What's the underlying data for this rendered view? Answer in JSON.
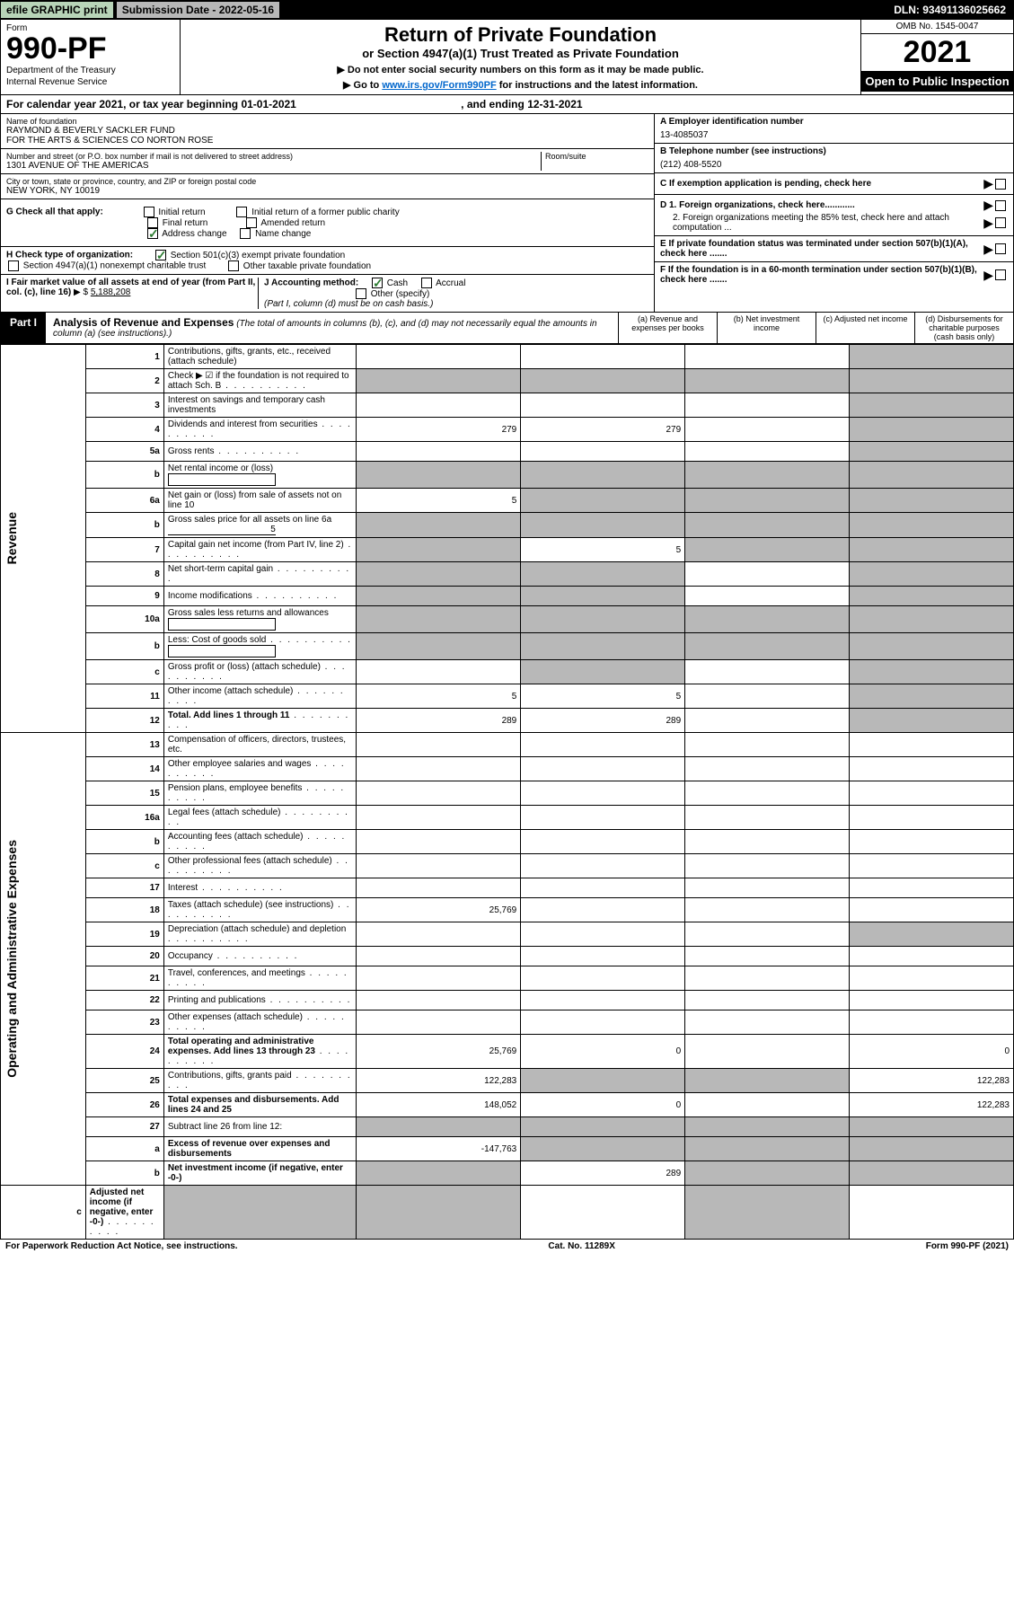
{
  "topbar": {
    "efile": "efile GRAPHIC print",
    "submission": "Submission Date - 2022-05-16",
    "dln": "DLN: 93491136025662"
  },
  "header": {
    "form_word": "Form",
    "form_number": "990-PF",
    "dept": "Department of the Treasury",
    "irs": "Internal Revenue Service",
    "title": "Return of Private Foundation",
    "subtitle": "or Section 4947(a)(1) Trust Treated as Private Foundation",
    "instr1": "▶ Do not enter social security numbers on this form as it may be made public.",
    "instr2_pre": "▶ Go to ",
    "instr2_link": "www.irs.gov/Form990PF",
    "instr2_post": " for instructions and the latest information.",
    "omb": "OMB No. 1545-0047",
    "year": "2021",
    "open": "Open to Public Inspection"
  },
  "calendar": {
    "text_pre": "For calendar year 2021, or tax year beginning ",
    "begin": "01-01-2021",
    "mid": " , and ending ",
    "end": "12-31-2021"
  },
  "foundation": {
    "name_label": "Name of foundation",
    "name1": "RAYMOND & BEVERLY SACKLER FUND",
    "name2": "FOR THE ARTS & SCIENCES CO NORTON ROSE",
    "addr_label": "Number and street (or P.O. box number if mail is not delivered to street address)",
    "addr": "1301 AVENUE OF THE AMERICAS",
    "room_label": "Room/suite",
    "city_label": "City or town, state or province, country, and ZIP or foreign postal code",
    "city": "NEW YORK, NY  10019",
    "ein_label": "A Employer identification number",
    "ein": "13-4085037",
    "phone_label": "B Telephone number (see instructions)",
    "phone": "(212) 408-5520",
    "c_label": "C If exemption application is pending, check here",
    "d1": "D 1. Foreign organizations, check here............",
    "d2": "2. Foreign organizations meeting the 85% test, check here and attach computation ...",
    "e_label": "E  If private foundation status was terminated under section 507(b)(1)(A), check here .......",
    "f_label": "F  If the foundation is in a 60-month termination under section 507(b)(1)(B), check here .......",
    "g_label": "G Check all that apply:",
    "g_opts": {
      "initial": "Initial return",
      "initial_former": "Initial return of a former public charity",
      "final": "Final return",
      "amended": "Amended return",
      "address": "Address change",
      "name": "Name change"
    },
    "h_label": "H Check type of organization:",
    "h_501": "Section 501(c)(3) exempt private foundation",
    "h_4947": "Section 4947(a)(1) nonexempt charitable trust",
    "h_other": "Other taxable private foundation",
    "i_label": "I Fair market value of all assets at end of year (from Part II, col. (c), line 16)",
    "i_val": "5,188,208",
    "j_label": "J Accounting method:",
    "j_cash": "Cash",
    "j_accrual": "Accrual",
    "j_other": "Other (specify)",
    "j_note": "(Part I, column (d) must be on cash basis.)"
  },
  "part1": {
    "label": "Part I",
    "title": "Analysis of Revenue and Expenses",
    "note": " (The total of amounts in columns (b), (c), and (d) may not necessarily equal the amounts in column (a) (see instructions).)",
    "col_a": "(a)  Revenue and expenses per books",
    "col_b": "(b)  Net investment income",
    "col_c": "(c)  Adjusted net income",
    "col_d": "(d)  Disbursements for charitable purposes (cash basis only)"
  },
  "vert": {
    "revenue": "Revenue",
    "expenses": "Operating and Administrative Expenses"
  },
  "rows": [
    {
      "n": "1",
      "desc": "Contributions, gifts, grants, etc., received (attach schedule)",
      "a": "",
      "b": "",
      "c": "",
      "d": "",
      "d_shade": true
    },
    {
      "n": "2",
      "desc": "Check ▶ ☑ if the foundation is not required to attach Sch. B",
      "dots": true,
      "a": "",
      "b": "",
      "c": "",
      "d": "",
      "all_shade": true
    },
    {
      "n": "3",
      "desc": "Interest on savings and temporary cash investments",
      "a": "",
      "b": "",
      "c": "",
      "d": "",
      "d_shade": true
    },
    {
      "n": "4",
      "desc": "Dividends and interest from securities",
      "dots": true,
      "a": "279",
      "b": "279",
      "c": "",
      "d": "",
      "d_shade": true
    },
    {
      "n": "5a",
      "desc": "Gross rents",
      "dots": true,
      "a": "",
      "b": "",
      "c": "",
      "d": "",
      "d_shade": true
    },
    {
      "n": "b",
      "desc": "Net rental income or (loss)",
      "inline_box": true,
      "a": "",
      "b": "",
      "c": "",
      "d": "",
      "all_shade": true
    },
    {
      "n": "6a",
      "desc": "Net gain or (loss) from sale of assets not on line 10",
      "a": "5",
      "b": "",
      "c": "",
      "d": "",
      "bcd_shade": true
    },
    {
      "n": "b",
      "desc": "Gross sales price for all assets on line 6a",
      "inline_val": "5",
      "a": "",
      "b": "",
      "c": "",
      "d": "",
      "all_shade": true
    },
    {
      "n": "7",
      "desc": "Capital gain net income (from Part IV, line 2)",
      "dots": true,
      "a": "",
      "b": "5",
      "c": "",
      "d": "",
      "a_shade": true,
      "cd_shade": true
    },
    {
      "n": "8",
      "desc": "Net short-term capital gain",
      "dots": true,
      "a": "",
      "b": "",
      "c": "",
      "d": "",
      "ab_shade": true,
      "d_shade": true
    },
    {
      "n": "9",
      "desc": "Income modifications",
      "dots": true,
      "a": "",
      "b": "",
      "c": "",
      "d": "",
      "ab_shade": true,
      "d_shade": true
    },
    {
      "n": "10a",
      "desc": "Gross sales less returns and allowances",
      "inline_box": true,
      "a": "",
      "b": "",
      "c": "",
      "d": "",
      "all_shade": true
    },
    {
      "n": "b",
      "desc": "Less: Cost of goods sold",
      "dots": true,
      "inline_box": true,
      "a": "",
      "b": "",
      "c": "",
      "d": "",
      "all_shade": true
    },
    {
      "n": "c",
      "desc": "Gross profit or (loss) (attach schedule)",
      "dots": true,
      "a": "",
      "b": "",
      "c": "",
      "d": "",
      "b_shade": true,
      "d_shade": true
    },
    {
      "n": "11",
      "desc": "Other income (attach schedule)",
      "dots": true,
      "a": "5",
      "b": "5",
      "c": "",
      "d": "",
      "d_shade": true
    },
    {
      "n": "12",
      "desc": "Total. Add lines 1 through 11",
      "bold": true,
      "dots": true,
      "a": "289",
      "b": "289",
      "c": "",
      "d": "",
      "d_shade": true
    },
    {
      "n": "13",
      "desc": "Compensation of officers, directors, trustees, etc.",
      "a": "",
      "b": "",
      "c": "",
      "d": ""
    },
    {
      "n": "14",
      "desc": "Other employee salaries and wages",
      "dots": true,
      "a": "",
      "b": "",
      "c": "",
      "d": ""
    },
    {
      "n": "15",
      "desc": "Pension plans, employee benefits",
      "dots": true,
      "a": "",
      "b": "",
      "c": "",
      "d": ""
    },
    {
      "n": "16a",
      "desc": "Legal fees (attach schedule)",
      "dots": true,
      "a": "",
      "b": "",
      "c": "",
      "d": ""
    },
    {
      "n": "b",
      "desc": "Accounting fees (attach schedule)",
      "dots": true,
      "a": "",
      "b": "",
      "c": "",
      "d": ""
    },
    {
      "n": "c",
      "desc": "Other professional fees (attach schedule)",
      "dots": true,
      "a": "",
      "b": "",
      "c": "",
      "d": ""
    },
    {
      "n": "17",
      "desc": "Interest",
      "dots": true,
      "a": "",
      "b": "",
      "c": "",
      "d": ""
    },
    {
      "n": "18",
      "desc": "Taxes (attach schedule) (see instructions)",
      "dots": true,
      "a": "25,769",
      "b": "",
      "c": "",
      "d": ""
    },
    {
      "n": "19",
      "desc": "Depreciation (attach schedule) and depletion",
      "dots": true,
      "a": "",
      "b": "",
      "c": "",
      "d": "",
      "d_shade": true
    },
    {
      "n": "20",
      "desc": "Occupancy",
      "dots": true,
      "a": "",
      "b": "",
      "c": "",
      "d": ""
    },
    {
      "n": "21",
      "desc": "Travel, conferences, and meetings",
      "dots": true,
      "a": "",
      "b": "",
      "c": "",
      "d": ""
    },
    {
      "n": "22",
      "desc": "Printing and publications",
      "dots": true,
      "a": "",
      "b": "",
      "c": "",
      "d": ""
    },
    {
      "n": "23",
      "desc": "Other expenses (attach schedule)",
      "dots": true,
      "a": "",
      "b": "",
      "c": "",
      "d": ""
    },
    {
      "n": "24",
      "desc": "Total operating and administrative expenses. Add lines 13 through 23",
      "bold": true,
      "dots": true,
      "a": "25,769",
      "b": "0",
      "c": "",
      "d": "0"
    },
    {
      "n": "25",
      "desc": "Contributions, gifts, grants paid",
      "dots": true,
      "a": "122,283",
      "b": "",
      "c": "",
      "d": "122,283",
      "bc_shade": true
    },
    {
      "n": "26",
      "desc": "Total expenses and disbursements. Add lines 24 and 25",
      "bold": true,
      "a": "148,052",
      "b": "0",
      "c": "",
      "d": "122,283"
    },
    {
      "n": "27",
      "desc": "Subtract line 26 from line 12:",
      "a": "",
      "b": "",
      "c": "",
      "d": "",
      "all_shade": true
    },
    {
      "n": "a",
      "desc": "Excess of revenue over expenses and disbursements",
      "bold": true,
      "a": "-147,763",
      "b": "",
      "c": "",
      "d": "",
      "bcd_shade": true
    },
    {
      "n": "b",
      "desc": "Net investment income (if negative, enter -0-)",
      "bold": true,
      "a": "",
      "b": "289",
      "c": "",
      "d": "",
      "a_shade": true,
      "cd_shade": true
    },
    {
      "n": "c",
      "desc": "Adjusted net income (if negative, enter -0-)",
      "bold": true,
      "dots": true,
      "a": "",
      "b": "",
      "c": "",
      "d": "",
      "ab_shade": true,
      "d_shade": true
    }
  ],
  "footer": {
    "left": "For Paperwork Reduction Act Notice, see instructions.",
    "center": "Cat. No. 11289X",
    "right": "Form 990-PF (2021)"
  }
}
